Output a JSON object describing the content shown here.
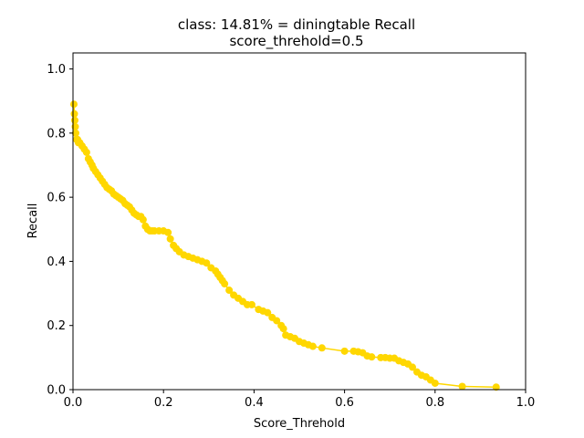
{
  "chart_data": {
    "type": "line",
    "title": "class: 14.81% = diningtable Recall",
    "subtitle": "score_threhold=0.5",
    "xlabel": "Score_Threhold",
    "ylabel": "Recall",
    "xlim": [
      0.0,
      1.0
    ],
    "ylim": [
      0.0,
      1.05
    ],
    "xticks": [
      "0.0",
      "0.2",
      "0.4",
      "0.6",
      "0.8",
      "1.0"
    ],
    "yticks": [
      "0.0",
      "0.2",
      "0.4",
      "0.6",
      "0.8",
      "1.0"
    ],
    "grid": false,
    "series": [
      {
        "color": "#ffd700",
        "x": [
          0.002,
          0.003,
          0.004,
          0.005,
          0.006,
          0.008,
          0.01,
          0.012,
          0.015,
          0.02,
          0.025,
          0.03,
          0.034,
          0.038,
          0.042,
          0.045,
          0.05,
          0.055,
          0.06,
          0.065,
          0.07,
          0.075,
          0.08,
          0.085,
          0.09,
          0.095,
          0.1,
          0.105,
          0.11,
          0.115,
          0.12,
          0.125,
          0.13,
          0.135,
          0.14,
          0.145,
          0.15,
          0.155,
          0.16,
          0.165,
          0.17,
          0.175,
          0.18,
          0.19,
          0.2,
          0.21,
          0.215,
          0.222,
          0.228,
          0.235,
          0.245,
          0.255,
          0.265,
          0.275,
          0.285,
          0.295,
          0.305,
          0.315,
          0.32,
          0.325,
          0.33,
          0.335,
          0.345,
          0.355,
          0.365,
          0.375,
          0.385,
          0.395,
          0.41,
          0.42,
          0.43,
          0.44,
          0.45,
          0.46,
          0.465,
          0.47,
          0.48,
          0.49,
          0.5,
          0.51,
          0.52,
          0.53,
          0.55,
          0.6,
          0.62,
          0.63,
          0.64,
          0.65,
          0.66,
          0.68,
          0.69,
          0.7,
          0.71,
          0.72,
          0.73,
          0.74,
          0.75,
          0.76,
          0.77,
          0.78,
          0.79,
          0.8,
          0.86,
          0.935
        ],
        "y": [
          0.89,
          0.86,
          0.84,
          0.82,
          0.8,
          0.78,
          0.78,
          0.77,
          0.77,
          0.76,
          0.75,
          0.74,
          0.72,
          0.71,
          0.7,
          0.69,
          0.68,
          0.67,
          0.66,
          0.65,
          0.64,
          0.63,
          0.625,
          0.62,
          0.61,
          0.605,
          0.6,
          0.595,
          0.59,
          0.58,
          0.575,
          0.57,
          0.56,
          0.55,
          0.545,
          0.54,
          0.54,
          0.53,
          0.51,
          0.5,
          0.495,
          0.495,
          0.495,
          0.495,
          0.495,
          0.49,
          0.47,
          0.45,
          0.44,
          0.43,
          0.42,
          0.415,
          0.41,
          0.405,
          0.4,
          0.395,
          0.38,
          0.37,
          0.36,
          0.35,
          0.34,
          0.33,
          0.31,
          0.295,
          0.285,
          0.275,
          0.265,
          0.265,
          0.25,
          0.245,
          0.24,
          0.225,
          0.215,
          0.2,
          0.19,
          0.17,
          0.165,
          0.16,
          0.15,
          0.145,
          0.14,
          0.135,
          0.13,
          0.12,
          0.12,
          0.118,
          0.115,
          0.105,
          0.102,
          0.1,
          0.1,
          0.098,
          0.098,
          0.09,
          0.085,
          0.08,
          0.07,
          0.055,
          0.045,
          0.04,
          0.03,
          0.02,
          0.01,
          0.008
        ]
      }
    ]
  }
}
